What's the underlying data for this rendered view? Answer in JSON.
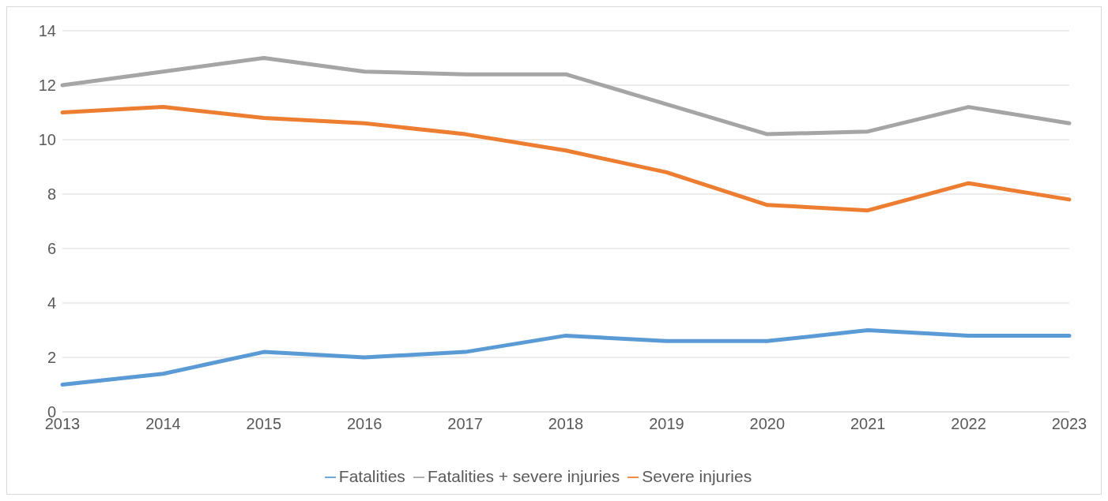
{
  "chart_data": {
    "type": "line",
    "categories": [
      "2013",
      "2014",
      "2015",
      "2016",
      "2017",
      "2018",
      "2019",
      "2020",
      "2021",
      "2022",
      "2023"
    ],
    "series": [
      {
        "name": "Fatalities",
        "color": "#5b9bd5",
        "values": [
          1.0,
          1.4,
          2.2,
          2.0,
          2.2,
          2.8,
          2.6,
          2.6,
          3.0,
          2.8,
          2.8
        ]
      },
      {
        "name": "Severe injuries",
        "color": "#ed7d31",
        "values": [
          11.0,
          11.2,
          10.8,
          10.6,
          10.2,
          9.6,
          8.8,
          7.6,
          7.4,
          8.4,
          7.8
        ]
      },
      {
        "name": "Fatalities + severe injuries",
        "color": "#a5a5a5",
        "values": [
          12.0,
          12.5,
          13.0,
          12.5,
          12.4,
          12.4,
          11.3,
          10.2,
          10.3,
          11.2,
          10.6
        ]
      }
    ],
    "ylim": [
      0,
      14
    ],
    "yticks": [
      0,
      2,
      4,
      6,
      8,
      10,
      12,
      14
    ],
    "grid": "y",
    "legend": "bottom",
    "marker": "none",
    "line_style": "solid"
  }
}
